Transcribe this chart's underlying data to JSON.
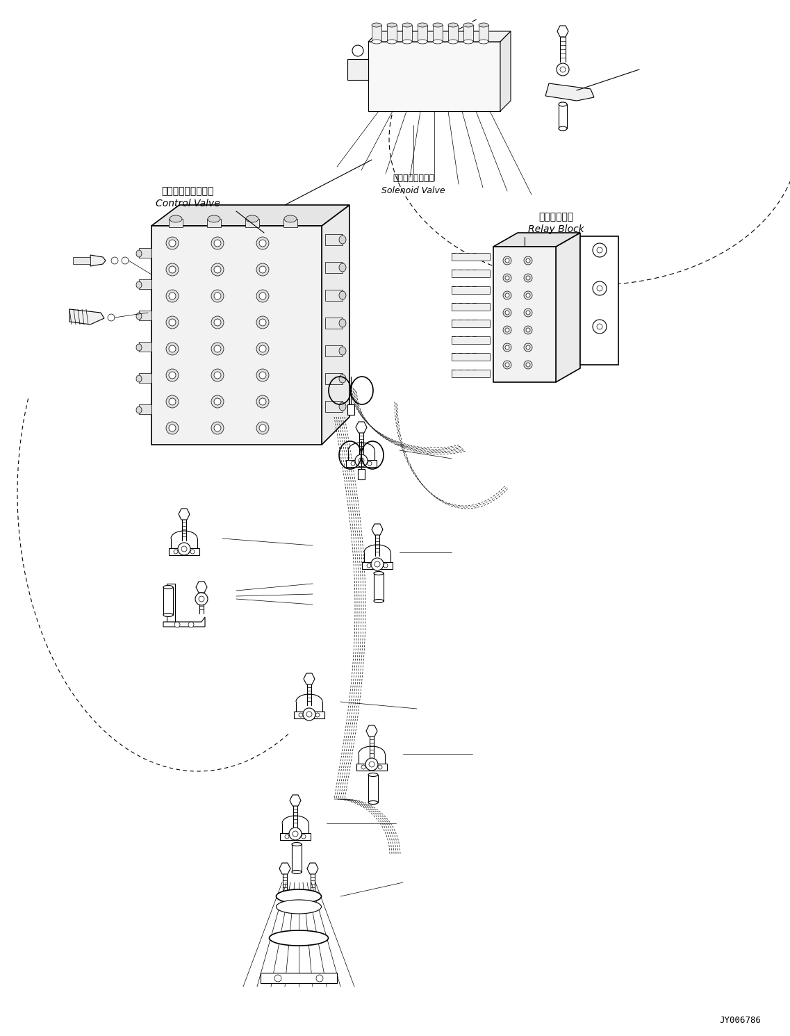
{
  "background_color": "#ffffff",
  "line_color": "#000000",
  "figure_width": 11.37,
  "figure_height": 14.91,
  "dpi": 100,
  "part_code": "JY006786",
  "labels": {
    "solenoid_valve_jp": "ソレノイドバルブ",
    "solenoid_valve_en": "Solenoid Valve",
    "control_valve_jp": "コントロールバルブ",
    "control_valve_en": "Control Valve",
    "relay_block_jp": "中継ブロック",
    "relay_block_en": "Relay Block"
  }
}
